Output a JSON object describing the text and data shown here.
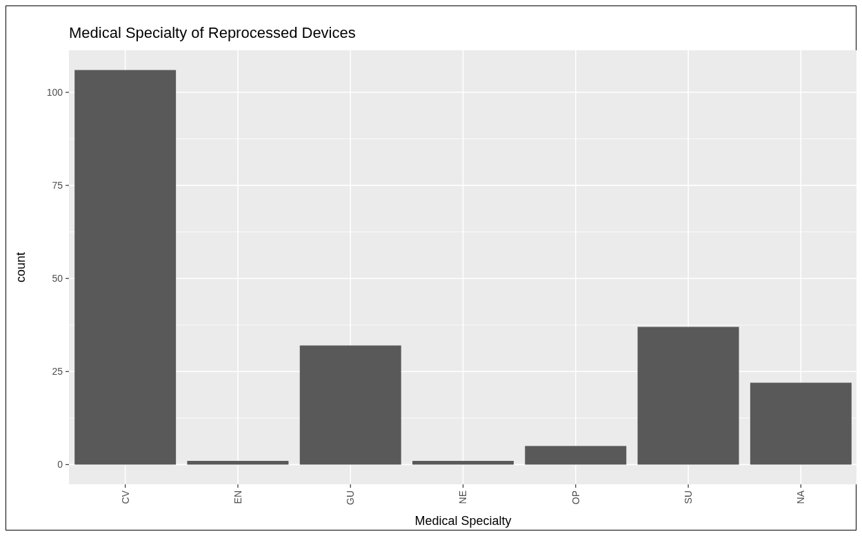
{
  "chart_data": {
    "type": "bar",
    "title": "Medical Specialty of Reprocessed Devices",
    "xlabel": "Medical Specialty",
    "ylabel": "count",
    "categories": [
      "CV",
      "EN",
      "GU",
      "NE",
      "OP",
      "SU",
      "NA"
    ],
    "values": [
      106,
      1,
      32,
      1,
      5,
      37,
      22
    ],
    "color": "#595959",
    "ylim": [
      -5.3,
      111.3
    ],
    "yticks": [
      0,
      25,
      50,
      75,
      100
    ],
    "grid": true
  }
}
